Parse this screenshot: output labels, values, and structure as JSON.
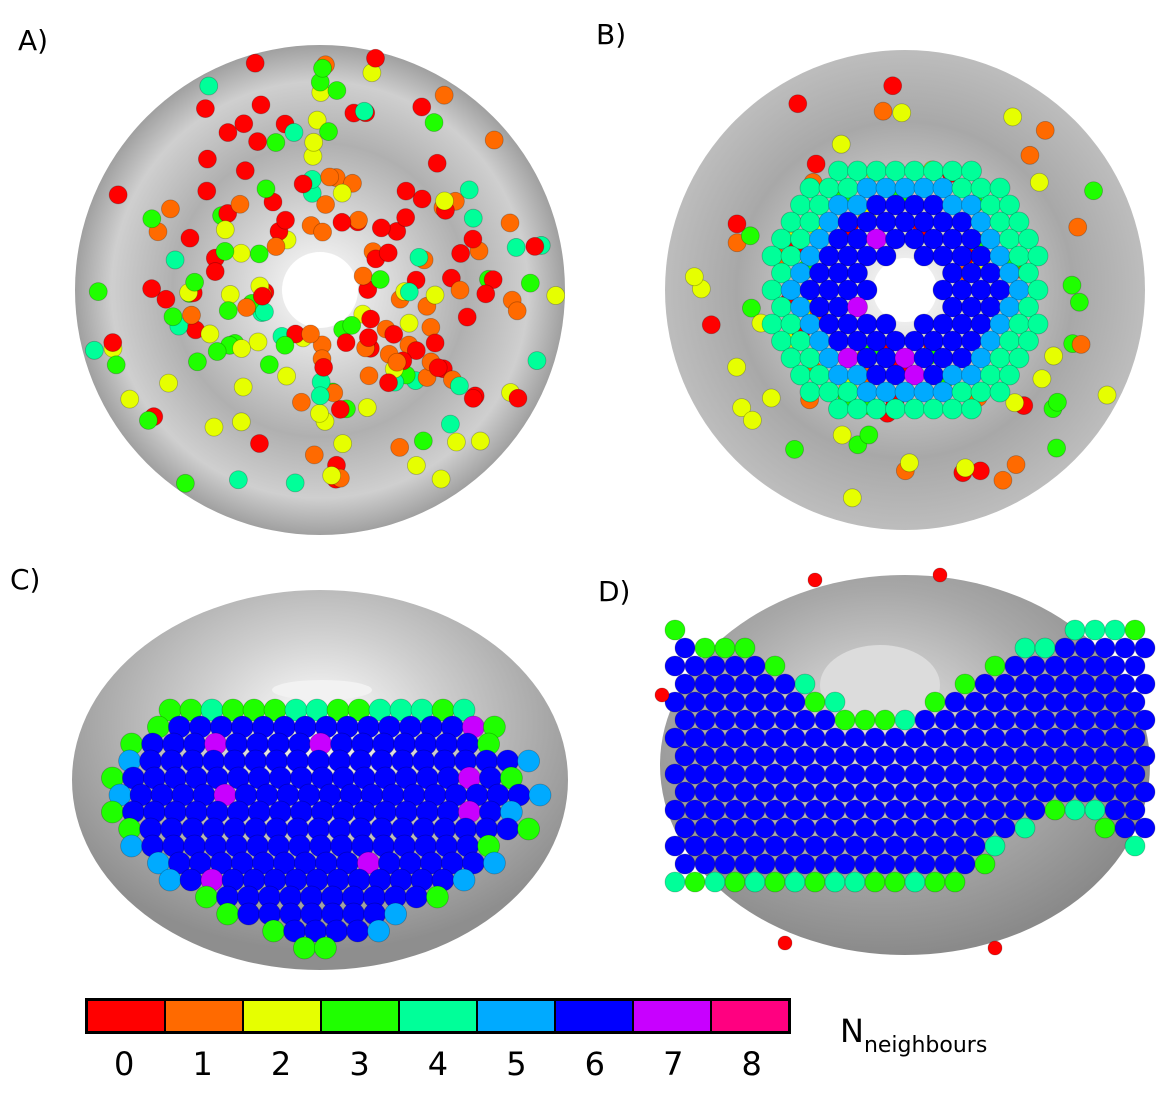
{
  "panels": [
    {
      "label": "A)"
    },
    {
      "label": "B)"
    },
    {
      "label": "C)"
    },
    {
      "label": "D)"
    }
  ],
  "colorbar": {
    "ticks": [
      "0",
      "1",
      "2",
      "3",
      "4",
      "5",
      "6",
      "7",
      "8"
    ],
    "colors": [
      "#ff0000",
      "#ff6a00",
      "#e6ff00",
      "#1fff00",
      "#00ff99",
      "#00aaff",
      "#0000ff",
      "#c800ff",
      "#ff0080"
    ],
    "title_main": "N",
    "title_sub": "neighbours"
  }
}
